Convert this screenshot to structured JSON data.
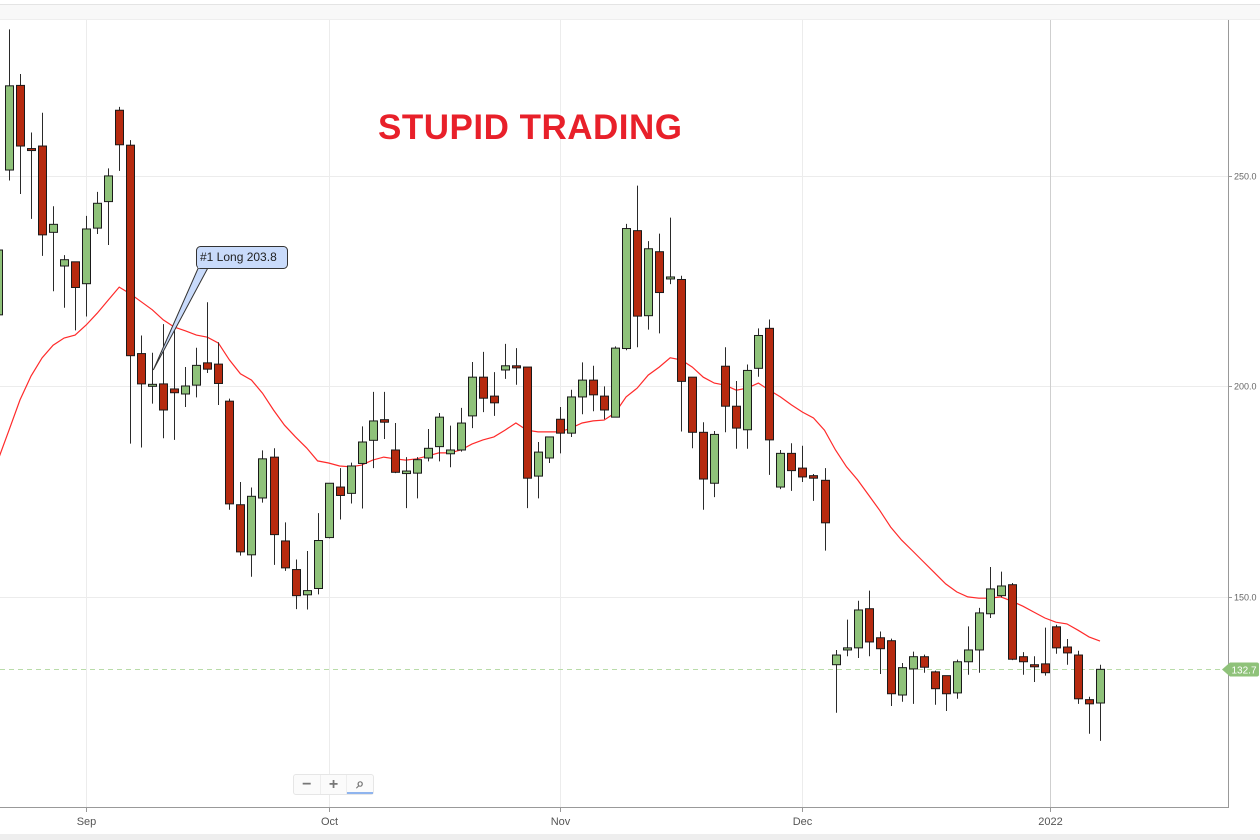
{
  "title": "STUPID TRADING",
  "colors": {
    "up": "#8fc27a",
    "down": "#b62a0f",
    "ma": "#ff2a2a",
    "title": "#e8202a",
    "last_price": "#8fc27a",
    "annotation_fill": "#c9dbfb"
  },
  "zoom_controls": {
    "zoom_out_icon": "minus-icon",
    "zoom_in_icon": "plus-icon",
    "reset_icon": "zoom-reset-icon",
    "minus": "−",
    "plus": "+",
    "reset": "⌕"
  },
  "chart_data": {
    "type": "candlestick",
    "title": "STUPID TRADING",
    "x_tick_labels": [
      {
        "date": "2021-09-01",
        "label": "Sep"
      },
      {
        "date": "2021-10-01",
        "label": "Oct"
      },
      {
        "date": "2021-11-01",
        "label": "Nov"
      },
      {
        "date": "2021-12-01",
        "label": "Dec"
      },
      {
        "date": "2022-01-01",
        "label": "2022"
      }
    ],
    "y_tick_labels": [
      "150.0",
      "200.0",
      "250.0"
    ],
    "y_ticks": [
      150,
      200,
      250
    ],
    "ylim": [
      102,
      297
    ],
    "grid": true,
    "last_price": {
      "value": 132.7,
      "label": "132.7"
    },
    "annotation": {
      "label": "#1 Long 203.8",
      "date": "2021-09-09",
      "price": 203.8
    },
    "columns": [
      "date",
      "open",
      "high",
      "low",
      "close"
    ],
    "candles": [
      [
        "2021-08-20",
        216.9,
        233.0,
        216.0,
        232.3
      ],
      [
        "2021-08-23",
        251.3,
        284.7,
        248.8,
        271.3
      ],
      [
        "2021-08-24",
        271.4,
        274.1,
        245.6,
        257.0
      ],
      [
        "2021-08-25",
        256.4,
        260.2,
        239.7,
        256.0
      ],
      [
        "2021-08-26",
        257.0,
        264.9,
        230.9,
        235.9
      ],
      [
        "2021-08-27",
        236.5,
        242.7,
        222.5,
        238.4
      ],
      [
        "2021-08-30",
        228.5,
        231.1,
        218.6,
        230.0
      ],
      [
        "2021-08-31",
        229.5,
        229.5,
        213.2,
        223.4
      ],
      [
        "2021-09-01",
        224.3,
        240.4,
        216.5,
        237.3
      ],
      [
        "2021-09-02",
        237.5,
        246.1,
        236.1,
        243.4
      ],
      [
        "2021-09-03",
        243.8,
        251.7,
        233.5,
        249.9
      ],
      [
        "2021-09-06",
        265.5,
        266.3,
        251.1,
        257.3
      ],
      [
        "2021-09-07",
        257.2,
        258.4,
        186.3,
        207.2
      ],
      [
        "2021-09-08",
        207.7,
        212.0,
        185.4,
        200.5
      ],
      [
        "2021-09-09",
        200.0,
        207.9,
        195.8,
        200.4
      ],
      [
        "2021-09-10",
        200.5,
        214.7,
        187.6,
        194.3
      ],
      [
        "2021-09-13",
        199.3,
        214.7,
        187.2,
        198.4
      ],
      [
        "2021-09-14",
        198.1,
        204.5,
        195.0,
        200.0
      ],
      [
        "2021-09-15",
        200.2,
        209.1,
        197.3,
        204.9
      ],
      [
        "2021-09-16",
        205.5,
        219.9,
        203.1,
        204.0
      ],
      [
        "2021-09-17",
        205.2,
        210.4,
        195.5,
        200.6
      ],
      [
        "2021-09-20",
        196.4,
        197.0,
        170.6,
        172.0
      ],
      [
        "2021-09-21",
        171.8,
        177.2,
        159.7,
        160.6
      ],
      [
        "2021-09-22",
        159.9,
        175.9,
        154.7,
        173.8
      ],
      [
        "2021-09-23",
        173.4,
        184.7,
        172.3,
        182.7
      ],
      [
        "2021-09-24",
        183.1,
        185.2,
        157.5,
        164.7
      ],
      [
        "2021-09-27",
        163.2,
        167.6,
        156.1,
        156.8
      ],
      [
        "2021-09-28",
        156.4,
        158.8,
        147.0,
        150.2
      ],
      [
        "2021-09-29",
        150.4,
        160.8,
        146.9,
        151.4
      ],
      [
        "2021-09-30",
        151.9,
        169.8,
        150.5,
        163.3
      ],
      [
        "2021-10-01",
        164.0,
        176.9,
        163.8,
        176.9
      ],
      [
        "2021-10-04",
        176.0,
        180.5,
        168.3,
        174.0
      ],
      [
        "2021-10-05",
        174.5,
        181.8,
        172.1,
        181.0
      ],
      [
        "2021-10-06",
        181.6,
        190.4,
        170.9,
        186.7
      ],
      [
        "2021-10-07",
        187.1,
        198.6,
        180.5,
        191.7
      ],
      [
        "2021-10-08",
        192.0,
        198.6,
        187.4,
        191.4
      ],
      [
        "2021-10-11",
        184.8,
        191.2,
        179.3,
        179.5
      ],
      [
        "2021-10-12",
        179.2,
        183.1,
        171.0,
        179.8
      ],
      [
        "2021-10-13",
        179.3,
        183.1,
        173.3,
        182.5
      ],
      [
        "2021-10-14",
        182.9,
        189.8,
        182.1,
        185.2
      ],
      [
        "2021-10-15",
        185.6,
        193.6,
        182.1,
        192.6
      ],
      [
        "2021-10-18",
        183.9,
        190.6,
        180.7,
        184.8
      ],
      [
        "2021-10-19",
        184.8,
        194.8,
        184.4,
        191.2
      ],
      [
        "2021-10-20",
        192.9,
        205.7,
        190.0,
        202.1
      ],
      [
        "2021-10-21",
        202.1,
        208.1,
        193.8,
        197.1
      ],
      [
        "2021-10-22",
        197.6,
        203.3,
        192.9,
        196.0
      ],
      [
        "2021-10-25",
        203.8,
        210.0,
        201.7,
        204.8
      ],
      [
        "2021-10-26",
        204.8,
        209.0,
        200.3,
        204.3
      ],
      [
        "2021-10-27",
        204.5,
        204.5,
        171.0,
        178.1
      ],
      [
        "2021-10-28",
        178.6,
        186.7,
        173.3,
        184.3
      ],
      [
        "2021-10-29",
        182.9,
        187.9,
        181.7,
        187.9
      ],
      [
        "2021-11-01",
        192.1,
        195.0,
        184.0,
        188.8
      ],
      [
        "2021-11-02",
        188.8,
        199.1,
        187.9,
        197.4
      ],
      [
        "2021-11-03",
        197.4,
        205.6,
        193.3,
        201.4
      ],
      [
        "2021-11-04",
        201.4,
        204.8,
        194.0,
        197.9
      ],
      [
        "2021-11-05",
        197.6,
        199.9,
        192.1,
        194.3
      ],
      [
        "2021-11-08",
        192.6,
        209.4,
        192.6,
        209.0
      ],
      [
        "2021-11-09",
        208.9,
        238.5,
        208.5,
        237.4
      ],
      [
        "2021-11-10",
        236.9,
        247.6,
        209.2,
        216.6
      ],
      [
        "2021-11-11",
        216.7,
        234.4,
        213.4,
        232.6
      ],
      [
        "2021-11-12",
        231.9,
        236.2,
        212.5,
        222.2
      ],
      [
        "2021-11-15",
        225.5,
        240.0,
        224.2,
        225.9
      ],
      [
        "2021-11-16",
        225.3,
        226.2,
        189.2,
        201.1
      ],
      [
        "2021-11-17",
        202.1,
        202.1,
        185.2,
        189.0
      ],
      [
        "2021-11-18",
        189.0,
        191.4,
        170.6,
        177.9
      ],
      [
        "2021-11-19",
        176.9,
        189.3,
        173.6,
        188.5
      ],
      [
        "2021-11-22",
        204.7,
        209.2,
        189.0,
        195.2
      ],
      [
        "2021-11-23",
        195.2,
        201.2,
        185.1,
        190.0
      ],
      [
        "2021-11-24",
        189.6,
        205.1,
        185.1,
        203.7
      ],
      [
        "2021-11-25",
        204.2,
        213.7,
        202.2,
        212.0
      ],
      [
        "2021-11-26",
        213.7,
        215.8,
        178.9,
        187.2
      ],
      [
        "2021-11-29",
        176.0,
        184.8,
        175.5,
        184.0
      ],
      [
        "2021-11-30",
        184.0,
        186.4,
        175.1,
        179.9
      ],
      [
        "2021-12-01",
        180.5,
        185.8,
        177.2,
        178.4
      ],
      [
        "2021-12-02",
        178.7,
        179.1,
        172.7,
        178.1
      ],
      [
        "2021-12-03",
        177.6,
        180.5,
        160.9,
        167.5
      ],
      [
        "2021-12-06",
        133.8,
        137.3,
        122.4,
        136.1
      ],
      [
        "2021-12-07",
        137.3,
        144.5,
        135.8,
        137.8
      ],
      [
        "2021-12-08",
        137.8,
        149.0,
        135.4,
        146.8
      ],
      [
        "2021-12-09",
        147.1,
        151.4,
        135.8,
        139.2
      ],
      [
        "2021-12-10",
        140.2,
        141.7,
        131.6,
        137.6
      ],
      [
        "2021-12-13",
        139.5,
        140.0,
        124.0,
        126.9
      ],
      [
        "2021-12-14",
        126.6,
        134.2,
        125.0,
        133.1
      ],
      [
        "2021-12-15",
        132.8,
        136.9,
        124.5,
        135.7
      ],
      [
        "2021-12-16",
        135.7,
        136.2,
        131.9,
        133.2
      ],
      [
        "2021-12-17",
        132.1,
        132.4,
        124.3,
        128.1
      ],
      [
        "2021-12-20",
        131.2,
        131.2,
        122.8,
        126.9
      ],
      [
        "2021-12-21",
        127.1,
        135.0,
        125.7,
        134.5
      ],
      [
        "2021-12-22",
        134.5,
        142.9,
        131.4,
        137.3
      ],
      [
        "2021-12-23",
        137.3,
        147.3,
        131.9,
        146.1
      ],
      [
        "2021-12-24",
        145.9,
        157.0,
        144.9,
        151.8
      ],
      [
        "2021-12-27",
        150.2,
        155.9,
        149.8,
        152.5
      ],
      [
        "2021-12-28",
        152.8,
        153.2,
        134.9,
        135.1
      ],
      [
        "2021-12-29",
        135.7,
        136.8,
        131.4,
        134.5
      ],
      [
        "2021-12-30",
        133.8,
        135.8,
        129.7,
        133.3
      ],
      [
        "2021-12-31",
        134.0,
        142.6,
        131.2,
        131.9
      ],
      [
        "2022-01-03",
        142.8,
        143.3,
        136.4,
        137.8
      ],
      [
        "2022-01-04",
        138.0,
        139.9,
        133.8,
        136.6
      ],
      [
        "2022-01-05",
        136.1,
        137.1,
        124.5,
        125.7
      ],
      [
        "2022-01-06",
        125.5,
        126.2,
        117.4,
        124.5
      ],
      [
        "2022-01-07",
        124.7,
        133.8,
        115.7,
        132.7
      ]
    ],
    "moving_average": [
      182.4,
      189.5,
      196.7,
      202.4,
      206.7,
      209.7,
      211.4,
      212.1,
      214.5,
      217.3,
      220.4,
      223.5,
      221.9,
      220.0,
      218.1,
      215.7,
      214.0,
      213.1,
      212.1,
      211.6,
      210.2,
      206.2,
      202.9,
      201.4,
      198.3,
      194.3,
      190.7,
      187.9,
      185.3,
      182.2,
      181.7,
      181.0,
      180.8,
      181.2,
      182.4,
      183.1,
      182.7,
      182.4,
      182.7,
      183.4,
      184.1,
      184.1,
      184.8,
      186.2,
      187.2,
      187.9,
      189.5,
      191.2,
      189.5,
      189.1,
      189.1,
      189.1,
      190.0,
      191.2,
      191.7,
      191.9,
      193.6,
      197.4,
      199.5,
      202.6,
      204.5,
      206.7,
      206.2,
      204.5,
      202.1,
      200.7,
      200.2,
      199.0,
      199.5,
      200.7,
      199.0,
      197.4,
      195.5,
      193.8,
      192.4,
      189.5,
      184.8,
      180.8,
      177.7,
      174.1,
      170.5,
      166.5,
      163.4,
      160.8,
      158.2,
      155.6,
      153.0,
      151.1,
      149.9,
      149.6,
      149.6,
      149.9,
      148.9,
      147.7,
      146.3,
      144.9,
      143.9,
      143.5,
      142.0,
      140.4,
      139.4
    ]
  }
}
